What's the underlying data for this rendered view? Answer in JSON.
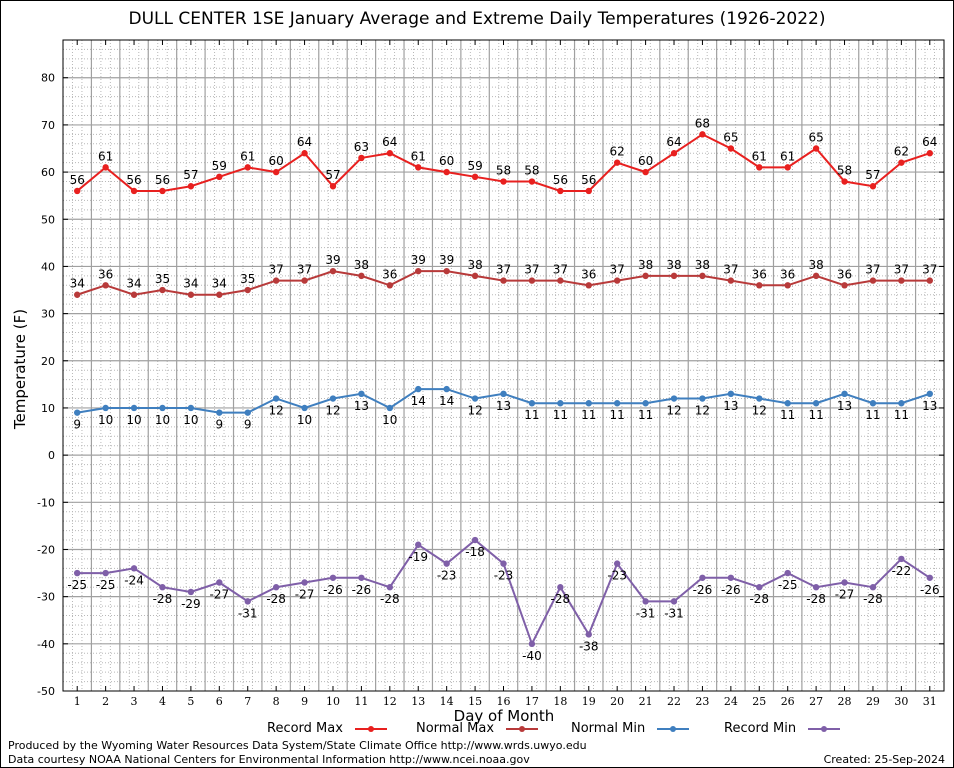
{
  "chart_data": {
    "type": "line",
    "title": "DULL CENTER 1SE January Average and Extreme Daily Temperatures (1926-2022)",
    "xlabel": "Day of Month",
    "ylabel": "Temperature (F)",
    "ylim": [
      -50,
      88
    ],
    "yticks": [
      "-50",
      "-40",
      "-30",
      "-20",
      "-10",
      "0",
      "10",
      "20",
      "30",
      "40",
      "50",
      "60",
      "70",
      "80"
    ],
    "categories": [
      "1",
      "2",
      "3",
      "4",
      "5",
      "6",
      "7",
      "8",
      "9",
      "10",
      "11",
      "12",
      "13",
      "14",
      "15",
      "16",
      "17",
      "18",
      "19",
      "20",
      "21",
      "22",
      "23",
      "24",
      "25",
      "26",
      "27",
      "28",
      "29",
      "30",
      "31"
    ],
    "grid": true,
    "legend_position": "bottom",
    "series": [
      {
        "name": "Record Max",
        "color": "#e8201f",
        "label_pos": "above",
        "values": [
          56,
          61,
          56,
          56,
          57,
          59,
          61,
          60,
          64,
          57,
          63,
          64,
          61,
          60,
          59,
          58,
          58,
          56,
          56,
          62,
          60,
          64,
          68,
          65,
          61,
          61,
          65,
          58,
          57,
          62,
          64
        ]
      },
      {
        "name": "Normal Max",
        "color": "#b83a3a",
        "label_pos": "above",
        "values": [
          34,
          36,
          34,
          35,
          34,
          34,
          35,
          37,
          37,
          39,
          38,
          36,
          39,
          39,
          38,
          37,
          37,
          37,
          36,
          37,
          38,
          38,
          38,
          37,
          36,
          36,
          38,
          36,
          37,
          37,
          37
        ]
      },
      {
        "name": "Normal Min",
        "color": "#3f7fbf",
        "label_pos": "below",
        "values": [
          9,
          10,
          10,
          10,
          10,
          9,
          9,
          12,
          10,
          12,
          13,
          10,
          14,
          14,
          12,
          13,
          11,
          11,
          11,
          11,
          11,
          12,
          12,
          13,
          12,
          11,
          11,
          13,
          11,
          11,
          13
        ]
      },
      {
        "name": "Record Min",
        "color": "#7f5fa8",
        "label_pos": "below",
        "values": [
          -25,
          -25,
          -24,
          -28,
          -29,
          -27,
          -31,
          -28,
          -27,
          -26,
          -26,
          -28,
          -19,
          -23,
          -18,
          -23,
          -40,
          -28,
          -38,
          -23,
          -31,
          -31,
          -26,
          -26,
          -28,
          -25,
          -28,
          -27,
          -28,
          -22,
          -26
        ]
      }
    ]
  },
  "footer": {
    "produced_by": "Produced by the Wyoming Water Resources Data System/State Climate Office http://www.wrds.uwyo.edu",
    "courtesy": "Data courtesy NOAA National Centers for Environmental Information http://www.ncei.noaa.gov",
    "created": "Created: 25-Sep-2024"
  }
}
